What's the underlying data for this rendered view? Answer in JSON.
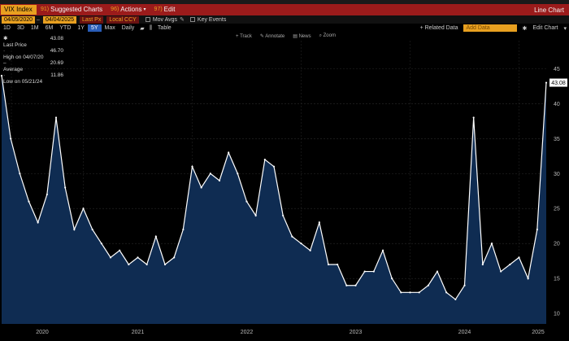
{
  "titlebar": {
    "security": "VIX Index",
    "suggested_num": "91)",
    "suggested": "Suggested Charts",
    "actions_num": "96)",
    "actions": "Actions",
    "edit_num": "97)",
    "edit": "Edit",
    "right": "Line Chart"
  },
  "controls": {
    "start_date": "04/05/2020",
    "end_date": "04/04/2025",
    "field": "Last Px",
    "currency": "Local CCY",
    "mov_avgs": "Mov Avgs",
    "key_events": "Key Events"
  },
  "periods": [
    "1D",
    "3D",
    "1M",
    "6M",
    "YTD",
    "1Y",
    "5Y",
    "Max"
  ],
  "active_period": "5Y",
  "frequency": "Daily",
  "table_label": "Table",
  "related_data": "+ Related Data",
  "add_data": "Add Data",
  "edit_chart": "Edit Chart",
  "tools": [
    "Track",
    "Annotate",
    "News",
    "Zoom"
  ],
  "legend": {
    "last": {
      "label": "Last Price",
      "value": "43.08"
    },
    "high": {
      "label": "High on 04/07/20",
      "value": "46.70"
    },
    "avg": {
      "label": "Average",
      "value": "20.69"
    },
    "low": {
      "label": "Low on 05/21/24",
      "value": "11.86"
    }
  },
  "last_tag": "43.08",
  "colors": {
    "line": "#ffffff",
    "fill": "#0f2c52",
    "accent": "#e8a020",
    "titlebar": "#9b1b1b",
    "active": "#2a5db8"
  },
  "chart_data": {
    "type": "area",
    "series": [
      {
        "name": "Last Price",
        "x": [
          "2020-04",
          "2020-05",
          "2020-06",
          "2020-07",
          "2020-08",
          "2020-09",
          "2020-10",
          "2020-11",
          "2020-12",
          "2021-01",
          "2021-02",
          "2021-03",
          "2021-04",
          "2021-05",
          "2021-06",
          "2021-07",
          "2021-08",
          "2021-09",
          "2021-10",
          "2021-11",
          "2021-12",
          "2022-01",
          "2022-02",
          "2022-03",
          "2022-04",
          "2022-05",
          "2022-06",
          "2022-07",
          "2022-08",
          "2022-09",
          "2022-10",
          "2022-11",
          "2022-12",
          "2023-01",
          "2023-02",
          "2023-03",
          "2023-04",
          "2023-05",
          "2023-06",
          "2023-07",
          "2023-08",
          "2023-09",
          "2023-10",
          "2023-11",
          "2023-12",
          "2024-01",
          "2024-02",
          "2024-03",
          "2024-04",
          "2024-05",
          "2024-06",
          "2024-07",
          "2024-08",
          "2024-09",
          "2024-10",
          "2024-11",
          "2024-12",
          "2025-01",
          "2025-02",
          "2025-03",
          "2025-04"
        ],
        "values": [
          44,
          35,
          30,
          26,
          23,
          27,
          38,
          28,
          22,
          25,
          22,
          20,
          18,
          19,
          17,
          18,
          17,
          21,
          17,
          18,
          22,
          31,
          28,
          30,
          29,
          33,
          30,
          26,
          24,
          32,
          31,
          24,
          21,
          20,
          19,
          23,
          17,
          17,
          14,
          14,
          16,
          16,
          19,
          15,
          13,
          13,
          13,
          14,
          16,
          13,
          12,
          14,
          38,
          17,
          20,
          16,
          17,
          18,
          15,
          22,
          43
        ]
      }
    ],
    "yticks": [
      10,
      15,
      20,
      25,
      30,
      35,
      40,
      45
    ],
    "ylim": [
      8.5,
      49
    ],
    "xticks": [
      "2020",
      "2021",
      "2022",
      "2023",
      "2024",
      "2025"
    ],
    "grid": true,
    "legend_position": "top-left"
  }
}
